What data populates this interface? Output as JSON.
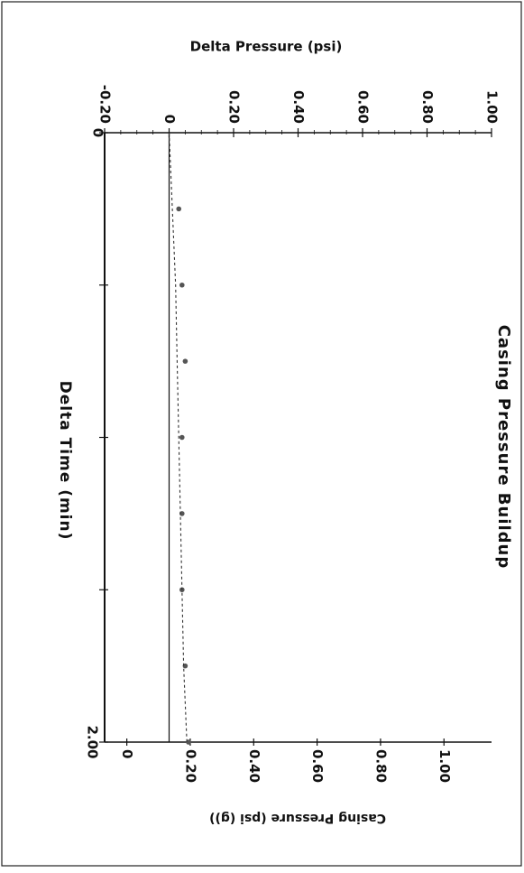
{
  "chart_data": {
    "type": "scatter",
    "title": "Casing Pressure Buildup",
    "xlabel": "Delta Time (min)",
    "ylabel_left": "Delta Pressure (psi)",
    "ylabel_right": "Casing Pressure (psi (g))",
    "x_tick_labels": [
      "0",
      "2.00"
    ],
    "xlim": [
      0,
      2.0
    ],
    "y1_tick_labels": [
      "-0.20",
      "0",
      "0.20",
      "0.40",
      "0.60",
      "0.80",
      "1.00"
    ],
    "y1lim": [
      -0.2,
      1.0
    ],
    "y1_ticks": [
      -0.2,
      0,
      0.2,
      0.4,
      0.6,
      0.8,
      1.0
    ],
    "y2_tick_labels": [
      "0",
      "0.20",
      "0.40",
      "0.60",
      "0.80",
      "1.00"
    ],
    "y2lim": [
      -0.07,
      1.15
    ],
    "y2_ticks": [
      0,
      0.2,
      0.4,
      0.6,
      0.8,
      1.0
    ],
    "grid": false,
    "legend": "none",
    "series": [
      {
        "style": "points",
        "x": [
          0.25,
          0.5,
          0.75,
          1.0,
          1.25,
          1.5,
          1.75,
          2.0
        ],
        "y": [
          0.03,
          0.04,
          0.05,
          0.04,
          0.04,
          0.04,
          0.05,
          0.06
        ]
      },
      {
        "style": "dashed-trend",
        "x": [
          0,
          0.25,
          0.5,
          0.75,
          1.0,
          1.25,
          1.5,
          1.75,
          2.0
        ],
        "y": [
          0.0,
          0.01,
          0.02,
          0.025,
          0.03,
          0.035,
          0.04,
          0.045,
          0.055
        ]
      }
    ],
    "colors": {
      "axis": "#111111",
      "points": "#555555",
      "trend": "#333333"
    }
  }
}
